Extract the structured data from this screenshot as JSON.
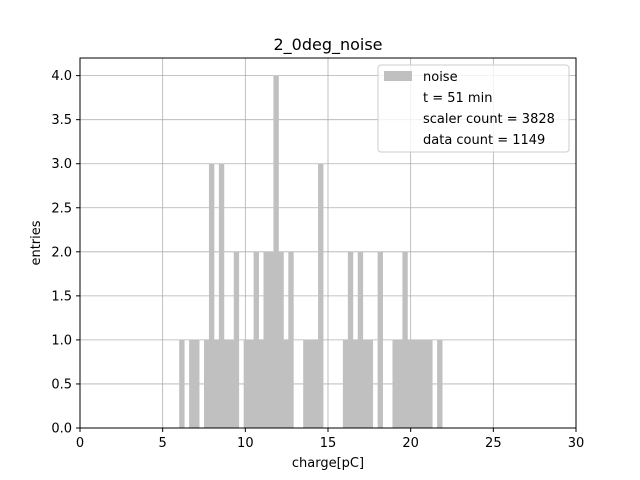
{
  "chart_data": {
    "type": "bar",
    "title": "2_0deg_noise",
    "xlabel": "charge[pC]",
    "ylabel": "entries",
    "xlim": [
      0,
      30
    ],
    "ylim": [
      0,
      4.2
    ],
    "grid": true,
    "legend_position": "top-right",
    "bar_color": "#c0c0c0",
    "bin_width": 0.3,
    "x_ticks": [
      "0",
      "5",
      "10",
      "15",
      "20",
      "25",
      "30"
    ],
    "y_ticks": [
      "0.0",
      "0.5",
      "1.0",
      "1.5",
      "2.0",
      "2.5",
      "3.0",
      "3.5",
      "4.0"
    ],
    "bins": [
      {
        "x": 6.0,
        "y": 1
      },
      {
        "x": 6.6,
        "y": 1
      },
      {
        "x": 6.9,
        "y": 1
      },
      {
        "x": 7.5,
        "y": 1
      },
      {
        "x": 7.8,
        "y": 3
      },
      {
        "x": 8.1,
        "y": 1
      },
      {
        "x": 8.4,
        "y": 3
      },
      {
        "x": 8.7,
        "y": 1
      },
      {
        "x": 9.0,
        "y": 1
      },
      {
        "x": 9.3,
        "y": 2
      },
      {
        "x": 9.9,
        "y": 1
      },
      {
        "x": 10.2,
        "y": 1
      },
      {
        "x": 10.5,
        "y": 2
      },
      {
        "x": 10.8,
        "y": 1
      },
      {
        "x": 11.1,
        "y": 2
      },
      {
        "x": 11.4,
        "y": 2
      },
      {
        "x": 11.7,
        "y": 4
      },
      {
        "x": 12.0,
        "y": 2
      },
      {
        "x": 12.3,
        "y": 1
      },
      {
        "x": 12.6,
        "y": 2
      },
      {
        "x": 13.5,
        "y": 1
      },
      {
        "x": 13.8,
        "y": 1
      },
      {
        "x": 14.1,
        "y": 1
      },
      {
        "x": 14.4,
        "y": 3
      },
      {
        "x": 15.9,
        "y": 1
      },
      {
        "x": 16.2,
        "y": 2
      },
      {
        "x": 16.5,
        "y": 1
      },
      {
        "x": 16.8,
        "y": 2
      },
      {
        "x": 17.1,
        "y": 1
      },
      {
        "x": 17.4,
        "y": 1
      },
      {
        "x": 18.0,
        "y": 2
      },
      {
        "x": 18.9,
        "y": 1
      },
      {
        "x": 19.2,
        "y": 1
      },
      {
        "x": 19.5,
        "y": 2
      },
      {
        "x": 19.8,
        "y": 1
      },
      {
        "x": 20.1,
        "y": 1
      },
      {
        "x": 20.4,
        "y": 1
      },
      {
        "x": 20.7,
        "y": 1
      },
      {
        "x": 21.0,
        "y": 1
      },
      {
        "x": 21.6,
        "y": 1
      }
    ],
    "legend": {
      "series_label": "noise",
      "lines": [
        "t = 51 min",
        "scaler count = 3828",
        "data count = 1149"
      ]
    }
  }
}
